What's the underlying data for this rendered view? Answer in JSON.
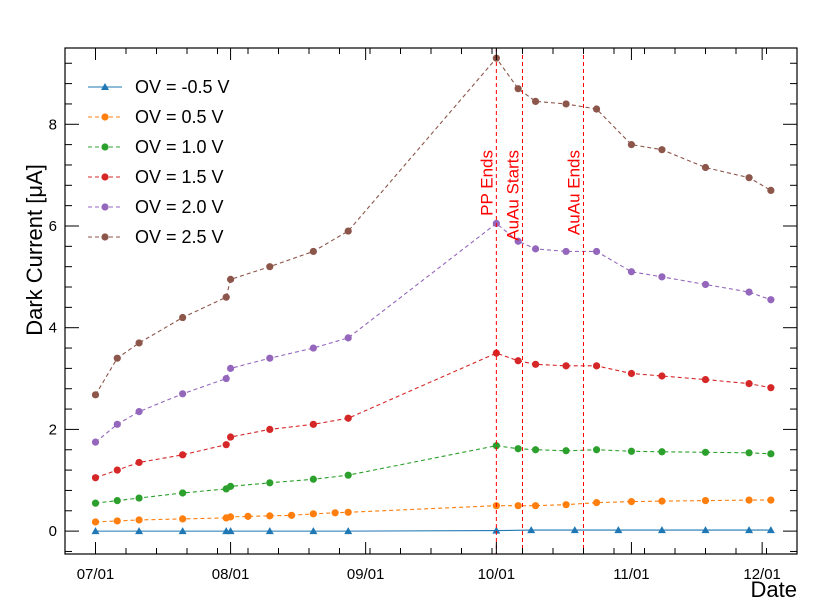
{
  "chart_data": {
    "type": "line",
    "title": "",
    "xlabel": "Date",
    "ylabel": "Dark Current [μA]",
    "x_tick_labels": [
      "07/01",
      "08/01",
      "09/01",
      "10/01",
      "11/01",
      "12/01"
    ],
    "x_tick_days": [
      0,
      31,
      62,
      92,
      123,
      153
    ],
    "xlim": [
      -7,
      161
    ],
    "y_ticks": [
      0,
      2,
      4,
      6,
      8
    ],
    "ylim": [
      -0.45,
      9.5
    ],
    "grid": false,
    "legend_position": "top-left",
    "x_unit": "days since 07/01",
    "series": [
      {
        "name": "OV = -0.5 V",
        "color": "#1f77b4",
        "marker": "triangle",
        "x": [
          0,
          10,
          20,
          30,
          31,
          40,
          50,
          58,
          92,
          100,
          110,
          120,
          130,
          140,
          150,
          155
        ],
        "y": [
          0.0,
          0.0,
          0.0,
          0.0,
          0.0,
          0.0,
          0.0,
          0.0,
          0.01,
          0.02,
          0.02,
          0.02,
          0.02,
          0.02,
          0.02,
          0.02
        ]
      },
      {
        "name": "OV = 0.5 V",
        "color": "#ff7f0e",
        "marker": "circle",
        "x": [
          0,
          5,
          10,
          20,
          30,
          31,
          35,
          40,
          45,
          50,
          55,
          58,
          92,
          97,
          101,
          108,
          115,
          123,
          130,
          140,
          150,
          155
        ],
        "y": [
          0.18,
          0.2,
          0.22,
          0.24,
          0.26,
          0.28,
          0.29,
          0.3,
          0.31,
          0.34,
          0.36,
          0.37,
          0.5,
          0.5,
          0.5,
          0.52,
          0.56,
          0.58,
          0.59,
          0.6,
          0.61,
          0.61
        ]
      },
      {
        "name": "OV = 1.0 V",
        "color": "#2ca02c",
        "marker": "circle",
        "x": [
          0,
          5,
          10,
          20,
          30,
          31,
          40,
          50,
          58,
          92,
          97,
          101,
          108,
          115,
          123,
          130,
          140,
          150,
          155
        ],
        "y": [
          0.55,
          0.6,
          0.65,
          0.75,
          0.83,
          0.88,
          0.95,
          1.02,
          1.1,
          1.68,
          1.62,
          1.6,
          1.58,
          1.6,
          1.57,
          1.56,
          1.55,
          1.54,
          1.52
        ]
      },
      {
        "name": "OV = 1.5 V",
        "color": "#d62728",
        "marker": "circle",
        "x": [
          0,
          5,
          10,
          20,
          30,
          31,
          40,
          50,
          58,
          92,
          97,
          101,
          108,
          115,
          123,
          130,
          140,
          150,
          155
        ],
        "y": [
          1.05,
          1.2,
          1.35,
          1.5,
          1.7,
          1.85,
          2.0,
          2.1,
          2.22,
          3.5,
          3.35,
          3.28,
          3.25,
          3.25,
          3.1,
          3.05,
          2.98,
          2.9,
          2.82
        ]
      },
      {
        "name": "OV = 2.0 V",
        "color": "#9467bd",
        "marker": "circle",
        "x": [
          0,
          5,
          10,
          20,
          30,
          31,
          40,
          50,
          58,
          92,
          97,
          101,
          108,
          115,
          123,
          130,
          140,
          150,
          155
        ],
        "y": [
          1.75,
          2.1,
          2.35,
          2.7,
          3.0,
          3.2,
          3.4,
          3.6,
          3.8,
          6.05,
          5.7,
          5.55,
          5.5,
          5.5,
          5.1,
          5.0,
          4.85,
          4.7,
          4.55
        ]
      },
      {
        "name": "OV = 2.5 V",
        "color": "#8c564b",
        "marker": "circle",
        "x": [
          0,
          5,
          10,
          20,
          30,
          31,
          40,
          50,
          58,
          92,
          97,
          101,
          108,
          115,
          123,
          130,
          140,
          150,
          155
        ],
        "y": [
          2.68,
          3.4,
          3.7,
          4.2,
          4.6,
          4.95,
          5.2,
          5.5,
          5.9,
          9.3,
          8.7,
          8.45,
          8.4,
          8.3,
          7.6,
          7.5,
          7.15,
          6.95,
          6.7
        ]
      }
    ],
    "annotations": [
      {
        "label": "PP Ends",
        "x": 92,
        "color": "#ff0000",
        "style": "dashed"
      },
      {
        "label": "AuAu Starts",
        "x": 98,
        "color": "#ff0000",
        "style": "dashed"
      },
      {
        "label": "AuAu Ends",
        "x": 112,
        "color": "#ff0000",
        "style": "dashed"
      }
    ]
  }
}
